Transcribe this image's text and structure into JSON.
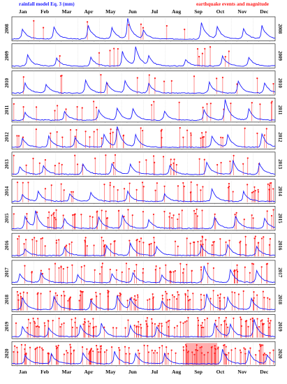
{
  "chart_data": {
    "type": "line",
    "legend": {
      "rainfall": "rainfall model Eq. 3 (mm)",
      "earthquake": "earthquake events and magnitude"
    },
    "months": [
      "Jan",
      "Feb",
      "Mar",
      "Apr",
      "May",
      "Jun",
      "Jul",
      "Aug",
      "Sep",
      "Oct",
      "Nov",
      "Dec"
    ],
    "years": [
      "2008",
      "2009",
      "2010",
      "2011",
      "2012",
      "2013",
      "2014",
      "2015",
      "2016",
      "2017",
      "2018",
      "2019",
      "2020"
    ],
    "colors": {
      "rainfall": "#1a1aff",
      "earthquake": "#ff1a1a",
      "axis": "#000000",
      "grid": "#bbbbbb"
    },
    "series": [
      {
        "name": "rainfall model Eq. 3 (mm)",
        "style": "line",
        "rain_peaks_by_year": [
          [
            [
              0.04,
              0.45
            ],
            [
              0.16,
              0.55
            ],
            [
              0.29,
              0.6
            ],
            [
              0.38,
              0.5
            ],
            [
              0.44,
              0.9
            ],
            [
              0.5,
              0.35
            ],
            [
              0.72,
              0.75
            ],
            [
              0.78,
              0.55
            ],
            [
              0.88,
              0.45
            ],
            [
              0.95,
              0.6
            ]
          ],
          [
            [
              0.06,
              0.5
            ],
            [
              0.17,
              0.35
            ],
            [
              0.3,
              0.4
            ],
            [
              0.42,
              0.65
            ],
            [
              0.47,
              0.85
            ],
            [
              0.52,
              0.4
            ],
            [
              0.66,
              0.3
            ],
            [
              0.8,
              0.45
            ],
            [
              0.9,
              0.4
            ]
          ],
          [
            [
              0.05,
              0.45
            ],
            [
              0.13,
              0.4
            ],
            [
              0.28,
              0.6
            ],
            [
              0.36,
              0.5
            ],
            [
              0.43,
              0.55
            ],
            [
              0.52,
              0.45
            ],
            [
              0.75,
              0.5
            ],
            [
              0.86,
              0.55
            ],
            [
              0.96,
              0.45
            ]
          ],
          [
            [
              0.05,
              0.35
            ],
            [
              0.2,
              0.4
            ],
            [
              0.33,
              0.45
            ],
            [
              0.4,
              0.55
            ],
            [
              0.46,
              0.5
            ],
            [
              0.58,
              0.4
            ],
            [
              0.73,
              0.45
            ],
            [
              0.81,
              0.95
            ],
            [
              0.9,
              0.5
            ]
          ],
          [
            [
              0.04,
              0.4
            ],
            [
              0.14,
              0.5
            ],
            [
              0.24,
              0.45
            ],
            [
              0.35,
              0.6
            ],
            [
              0.4,
              0.95
            ],
            [
              0.47,
              0.55
            ],
            [
              0.76,
              0.5
            ],
            [
              0.82,
              0.55
            ],
            [
              0.95,
              0.6
            ]
          ],
          [
            [
              0.03,
              0.35
            ],
            [
              0.12,
              0.4
            ],
            [
              0.27,
              0.45
            ],
            [
              0.38,
              0.5
            ],
            [
              0.45,
              0.45
            ],
            [
              0.6,
              0.4
            ],
            [
              0.74,
              0.55
            ],
            [
              0.84,
              0.6
            ],
            [
              0.94,
              0.5
            ]
          ],
          [
            [
              0.04,
              0.3
            ],
            [
              0.1,
              0.45
            ],
            [
              0.22,
              0.35
            ],
            [
              0.3,
              0.4
            ],
            [
              0.44,
              0.45
            ],
            [
              0.58,
              0.35
            ],
            [
              0.76,
              0.55
            ],
            [
              0.88,
              0.45
            ]
          ],
          [
            [
              0.05,
              0.55
            ],
            [
              0.09,
              0.75
            ],
            [
              0.2,
              0.45
            ],
            [
              0.33,
              0.5
            ],
            [
              0.42,
              0.6
            ],
            [
              0.52,
              0.4
            ],
            [
              0.77,
              0.5
            ],
            [
              0.85,
              0.55
            ],
            [
              0.96,
              0.45
            ]
          ],
          [
            [
              0.05,
              0.3
            ],
            [
              0.2,
              0.35
            ],
            [
              0.36,
              0.45
            ],
            [
              0.45,
              0.55
            ],
            [
              0.55,
              0.4
            ],
            [
              0.72,
              0.45
            ],
            [
              0.82,
              0.5
            ],
            [
              0.93,
              0.4
            ]
          ],
          [
            [
              0.03,
              0.4
            ],
            [
              0.11,
              0.45
            ],
            [
              0.25,
              0.35
            ],
            [
              0.38,
              0.4
            ],
            [
              0.46,
              0.45
            ],
            [
              0.57,
              0.35
            ],
            [
              0.73,
              0.75
            ],
            [
              0.83,
              0.6
            ],
            [
              0.93,
              0.55
            ]
          ],
          [
            [
              0.04,
              0.55
            ],
            [
              0.16,
              0.6
            ],
            [
              0.3,
              0.45
            ],
            [
              0.4,
              0.65
            ],
            [
              0.45,
              0.5
            ],
            [
              0.57,
              0.4
            ],
            [
              0.74,
              0.7
            ],
            [
              0.82,
              0.55
            ],
            [
              0.91,
              0.5
            ]
          ],
          [
            [
              0.04,
              0.45
            ],
            [
              0.14,
              0.4
            ],
            [
              0.26,
              0.5
            ],
            [
              0.34,
              0.6
            ],
            [
              0.45,
              0.5
            ],
            [
              0.55,
              0.45
            ],
            [
              0.77,
              0.6
            ],
            [
              0.83,
              0.55
            ],
            [
              0.92,
              0.8
            ]
          ],
          [
            [
              0.05,
              0.4
            ],
            [
              0.15,
              0.45
            ],
            [
              0.27,
              0.5
            ],
            [
              0.39,
              0.55
            ],
            [
              0.47,
              0.45
            ],
            [
              0.58,
              0.45
            ],
            [
              0.8,
              0.65
            ],
            [
              0.9,
              0.6
            ],
            [
              0.97,
              0.4
            ]
          ]
        ]
      },
      {
        "name": "earthquake events and magnitude",
        "style": "stem",
        "events_per_year": [
          8,
          12,
          16,
          22,
          42,
          34,
          48,
          56,
          72,
          60,
          95,
          115,
          125
        ],
        "magnitude_range": [
          0.45,
          0.95
        ],
        "shaded_band_2020": [
          0.66,
          0.78
        ]
      }
    ]
  }
}
